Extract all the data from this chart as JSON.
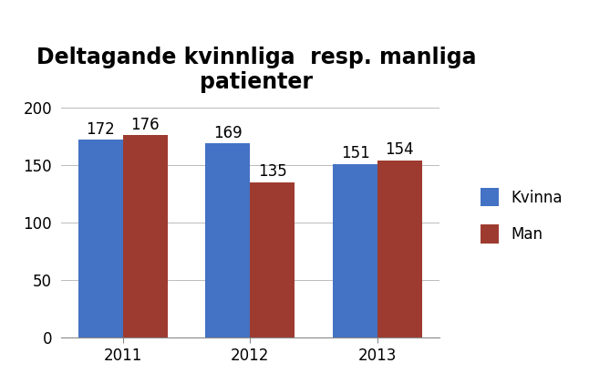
{
  "title": "Deltagande kvinnliga  resp. manliga\npatienter",
  "categories": [
    "2011",
    "2012",
    "2013"
  ],
  "kvinna_values": [
    172,
    169,
    151
  ],
  "man_values": [
    176,
    135,
    154
  ],
  "kvinna_color": "#4472C4",
  "man_color": "#9E3B30",
  "legend_labels": [
    "Kvinna",
    "Man"
  ],
  "ylim": [
    0,
    200
  ],
  "yticks": [
    0,
    50,
    100,
    150,
    200
  ],
  "bar_width": 0.35,
  "title_fontsize": 17,
  "tick_fontsize": 12,
  "label_fontsize": 12,
  "legend_fontsize": 12,
  "background_color": "#FFFFFF"
}
